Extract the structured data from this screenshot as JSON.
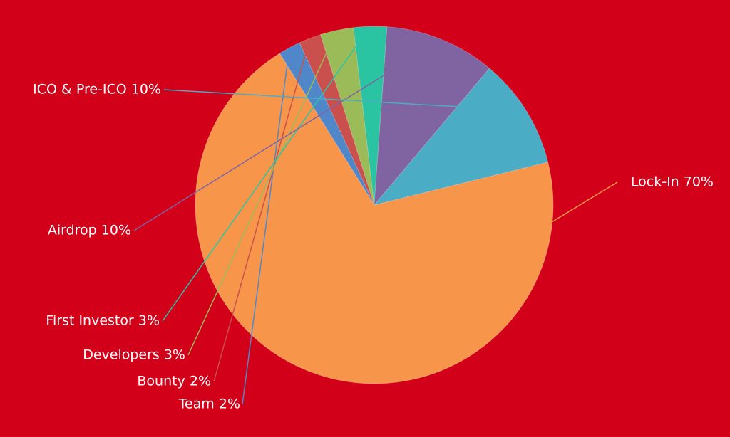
{
  "chart_data": {
    "type": "pie",
    "background": "#d3001a",
    "slices": [
      {
        "name": "Lock-In",
        "value": 70,
        "label": "Lock-In 70%",
        "color": "#f7964b"
      },
      {
        "name": "Team",
        "value": 2,
        "label": "Team 2%",
        "color": "#4f87c9"
      },
      {
        "name": "Bounty",
        "value": 2,
        "label": "Bounty 2%",
        "color": "#c9504c"
      },
      {
        "name": "Developers",
        "value": 3,
        "label": "Developers 3%",
        "color": "#9bbb59"
      },
      {
        "name": "First Investor",
        "value": 3,
        "label": "First Investor 3%",
        "color": "#2bc4a3"
      },
      {
        "name": "Airdrop",
        "value": 10,
        "label": "Airdrop 10%",
        "color": "#8064a2"
      },
      {
        "name": "ICO & Pre-ICO",
        "value": 10,
        "label": "ICO & Pre-ICO 10%",
        "color": "#4bacc6"
      }
    ]
  }
}
